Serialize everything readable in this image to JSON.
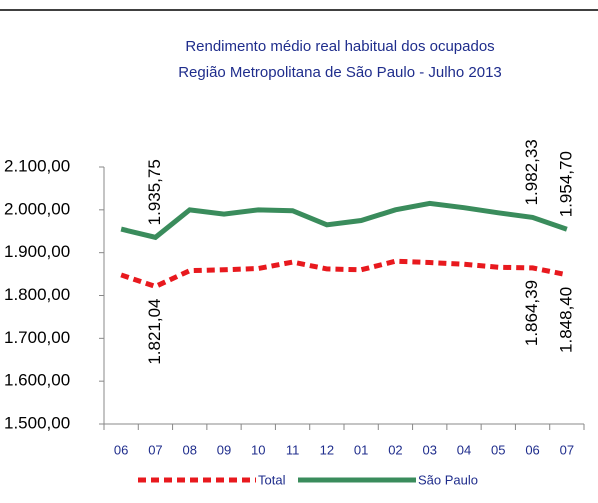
{
  "chart_data": {
    "type": "line",
    "title": "Rendimento médio real habitual dos ocupados",
    "subtitle": "Região Metropolitana de São Paulo - Julho 2013",
    "categories": [
      "06",
      "07",
      "08",
      "09",
      "10",
      "11",
      "12",
      "01",
      "02",
      "03",
      "04",
      "05",
      "06",
      "07"
    ],
    "series": [
      {
        "name": "Total",
        "color": "#e8191e",
        "dashed": true,
        "values": [
          1848,
          1821.04,
          1858,
          1860,
          1863,
          1878,
          1862,
          1860,
          1880,
          1877,
          1873,
          1866,
          1864.39,
          1848.4
        ],
        "value_labels": [
          null,
          "1.821,04",
          null,
          null,
          null,
          null,
          null,
          null,
          null,
          null,
          null,
          null,
          "1.864,39",
          "1.848,40"
        ]
      },
      {
        "name": "São Paulo",
        "color": "#3a8c5c",
        "dashed": false,
        "values": [
          1955,
          1935.75,
          2000,
          1990,
          2000,
          1998,
          1965,
          1975,
          2000,
          2015,
          2005,
          1993,
          1982.33,
          1954.7
        ],
        "value_labels": [
          null,
          "1.935,75",
          null,
          null,
          null,
          null,
          null,
          null,
          null,
          null,
          null,
          null,
          "1.982,33",
          "1.954,70"
        ]
      }
    ],
    "ylim": [
      1500,
      2100
    ],
    "yticks": [
      {
        "value": 1500,
        "label": "1.500,00"
      },
      {
        "value": 1600,
        "label": "1.600,00"
      },
      {
        "value": 1700,
        "label": "1.700,00"
      },
      {
        "value": 1800,
        "label": "1.800,00"
      },
      {
        "value": 1900,
        "label": "1.900,00"
      },
      {
        "value": 2000,
        "label": "2.000,00"
      },
      {
        "value": 2100,
        "label": "2.100,00"
      }
    ]
  }
}
